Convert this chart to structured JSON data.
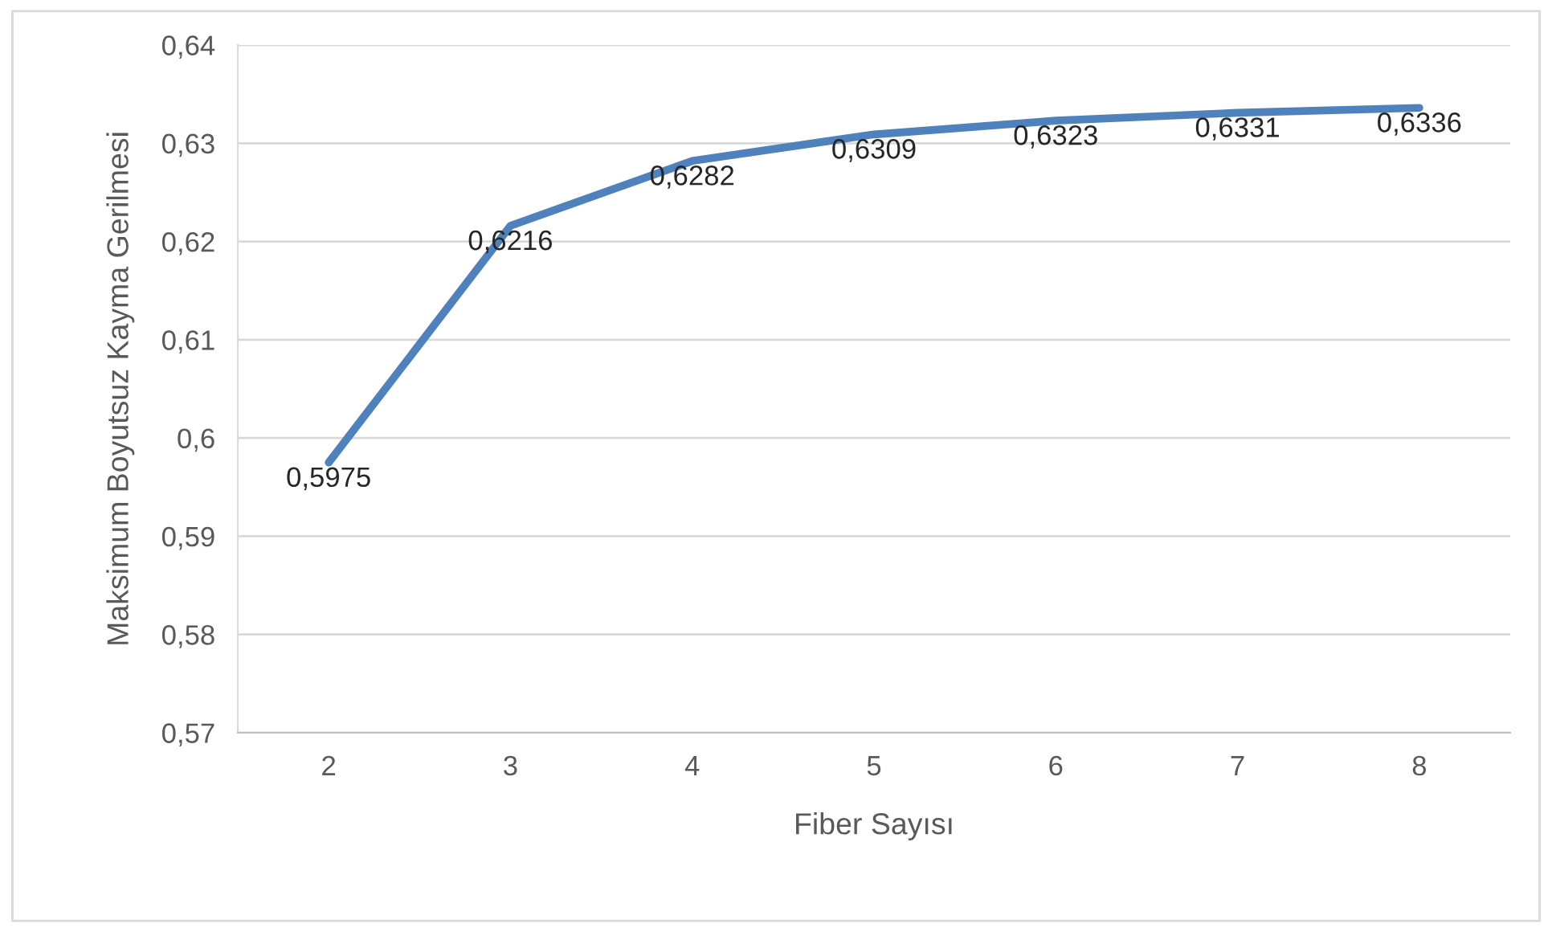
{
  "chart_data": {
    "type": "line",
    "xlabel": "Fiber Sayısı",
    "ylabel": "Maksimum Boyutsuz Kayma Gerilmesi",
    "categories": [
      "2",
      "3",
      "4",
      "5",
      "6",
      "7",
      "8"
    ],
    "series": [
      {
        "color": "#4f81bd",
        "values": [
          0.5975,
          0.6216,
          0.6282,
          0.6309,
          0.6323,
          0.6331,
          0.6336
        ],
        "value_labels": [
          "0,5975",
          "0,6216",
          "0,6282",
          "0,6309",
          "0,6323",
          "0,6331",
          "0,6336"
        ]
      }
    ],
    "ylim": [
      0.57,
      0.64
    ],
    "yticks": [
      {
        "value": 0.57,
        "label": "0,57"
      },
      {
        "value": 0.58,
        "label": "0,58"
      },
      {
        "value": 0.59,
        "label": "0,59"
      },
      {
        "value": 0.6,
        "label": "0,6"
      },
      {
        "value": 0.61,
        "label": "0,61"
      },
      {
        "value": 0.62,
        "label": "0,62"
      },
      {
        "value": 0.63,
        "label": "0,63"
      },
      {
        "value": 0.64,
        "label": "0,64"
      }
    ],
    "grid": "y",
    "marker": "none",
    "line_style": "solid"
  }
}
